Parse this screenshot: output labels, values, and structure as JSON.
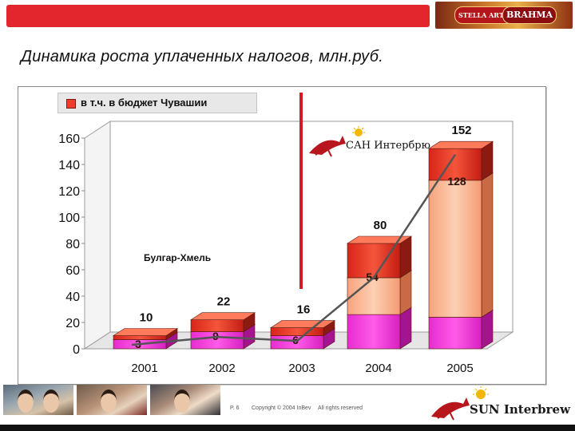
{
  "header": {
    "title": "Динамика роста уплаченных налогов, млн.руб.",
    "brands": [
      "STELLA ARTOIS",
      "BRAHMA"
    ],
    "accent": "#e3262d"
  },
  "legend": {
    "label": "в т.ч. в бюджет Чувашии",
    "color": "#ef3c2c"
  },
  "annotation": {
    "text": "Булгар-Хмель"
  },
  "logos": {
    "middle": {
      "text_cyr": "САН Интербрю"
    },
    "footer": {
      "text_lat": "SUN Interbrew"
    }
  },
  "footer": {
    "page": "P. 6",
    "copyright": "Copyright © 2004 InBev",
    "rights": "All rights reserved"
  },
  "chart_data": {
    "type": "bar",
    "categories": [
      "2001",
      "2002",
      "2003",
      "2004",
      "2005"
    ],
    "series": [
      {
        "values": [
          10,
          22,
          16,
          80,
          152
        ],
        "color": "#ef3c2c"
      },
      {
        "name": "в т.ч. в бюджет Чувашии",
        "values": [
          3,
          9,
          6,
          54,
          128
        ]
      }
    ],
    "bottom_segment": {
      "values": [
        7,
        13,
        10,
        26,
        24
      ],
      "color": "#f23cd8"
    },
    "middle_color": "#fbb48c",
    "trend_line": {
      "color": "#555555"
    },
    "yticks": [
      0,
      20,
      40,
      60,
      80,
      100,
      120,
      140,
      160
    ],
    "ylim": [
      0,
      160
    ],
    "grid": false,
    "legend_position": "top-left"
  }
}
